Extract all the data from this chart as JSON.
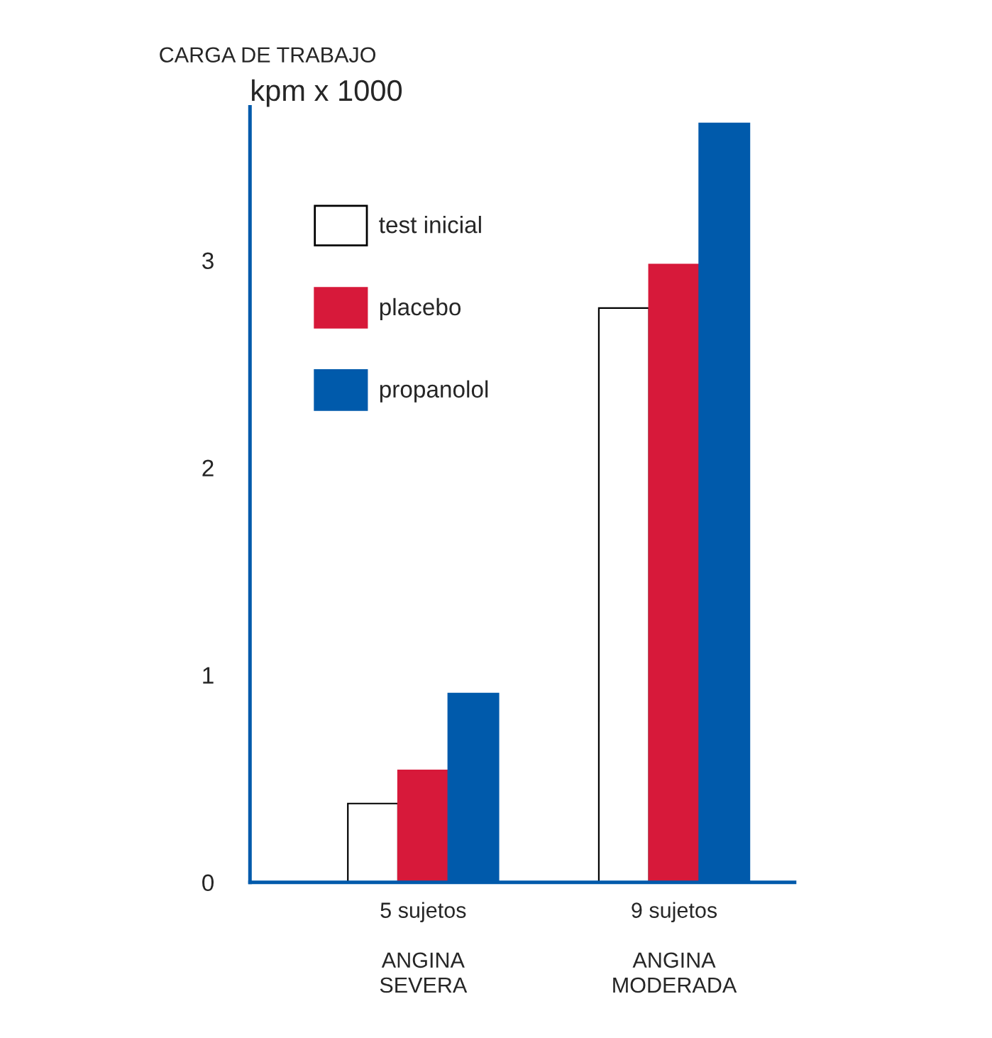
{
  "chart_data": {
    "type": "bar",
    "title": "CARGA DE TRABAJO",
    "ylabel": "kpm x 1000",
    "categories": [
      "5 sujetos\n\nANGINA\nSEVERA",
      "9 sujetos\n\nANGINA\nMODERADA"
    ],
    "series": [
      {
        "name": "test inicial",
        "color": "#ffffff",
        "values": [
          0.38,
          2.77
        ]
      },
      {
        "name": "placebo",
        "color": "#d7193a",
        "values": [
          0.54,
          2.98
        ]
      },
      {
        "name": "propanolol",
        "color": "#005aab",
        "values": [
          0.91,
          3.66
        ]
      }
    ],
    "ylim": [
      0,
      3.74
    ],
    "yticks": [
      0,
      1,
      2,
      3
    ],
    "grid": false,
    "legend": "top left"
  }
}
